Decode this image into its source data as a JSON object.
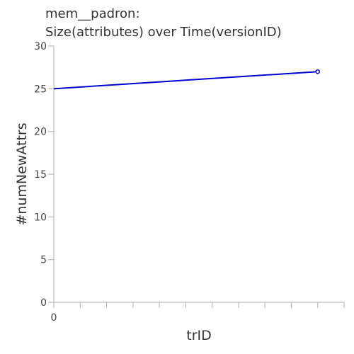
{
  "chart_data": {
    "type": "line",
    "title_lines": [
      "mem__padron:",
      "Size(attributes) over Time(versionID)"
    ],
    "xlabel": "trID",
    "ylabel": "#numNewAttrs",
    "x_tick_labels": [
      "0"
    ],
    "y_ticks": [
      0,
      5,
      10,
      15,
      20,
      25,
      30
    ],
    "ylim": [
      0,
      30
    ],
    "xlim": [
      0,
      11
    ],
    "x_minor_ticks": [
      1,
      2,
      3,
      4,
      5,
      6,
      7,
      8,
      9,
      10,
      11
    ],
    "series": [
      {
        "x": [
          0,
          10
        ],
        "y": [
          25,
          27
        ],
        "color": "#0000cc"
      }
    ],
    "grid": false,
    "axis_color": "#bbbbbb"
  }
}
